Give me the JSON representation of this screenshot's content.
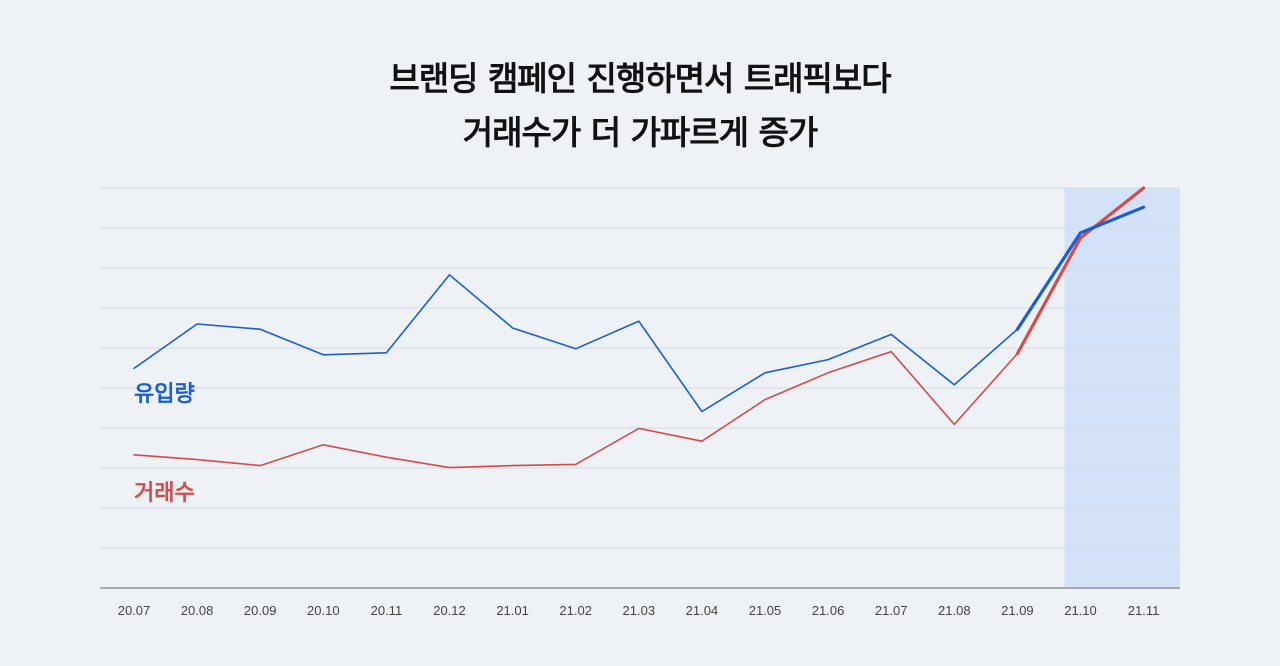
{
  "chart_data": {
    "type": "line",
    "title_lines": [
      "브랜딩 캠페인 진행하면서 트래픽보다",
      "거래수가 더 가파르게 증가"
    ],
    "categories": [
      "20.07",
      "20.08",
      "20.09",
      "20.10",
      "20.11",
      "20.12",
      "21.01",
      "21.02",
      "21.03",
      "21.04",
      "21.05",
      "21.06",
      "21.07",
      "21.08",
      "21.09",
      "21.10",
      "21.11"
    ],
    "ylim": [
      0,
      100
    ],
    "grid": true,
    "highlight_range": [
      "21.10",
      "21.11"
    ],
    "series": [
      {
        "name": "유입량",
        "color": "#1a5fd0",
        "values": [
          54.9,
          66.0,
          64.7,
          58.3,
          58.8,
          78.3,
          65.0,
          59.8,
          66.7,
          44.1,
          53.8,
          57.1,
          63.4,
          50.8,
          64.7,
          88.8,
          95.2
        ]
      },
      {
        "name": "거래수",
        "color": "#d64a4a",
        "values": [
          33.3,
          32.1,
          30.6,
          35.8,
          32.7,
          30.1,
          30.6,
          30.9,
          39.9,
          36.7,
          47.1,
          53.8,
          59.1,
          40.9,
          58.6,
          87.5,
          100.0
        ]
      }
    ]
  }
}
